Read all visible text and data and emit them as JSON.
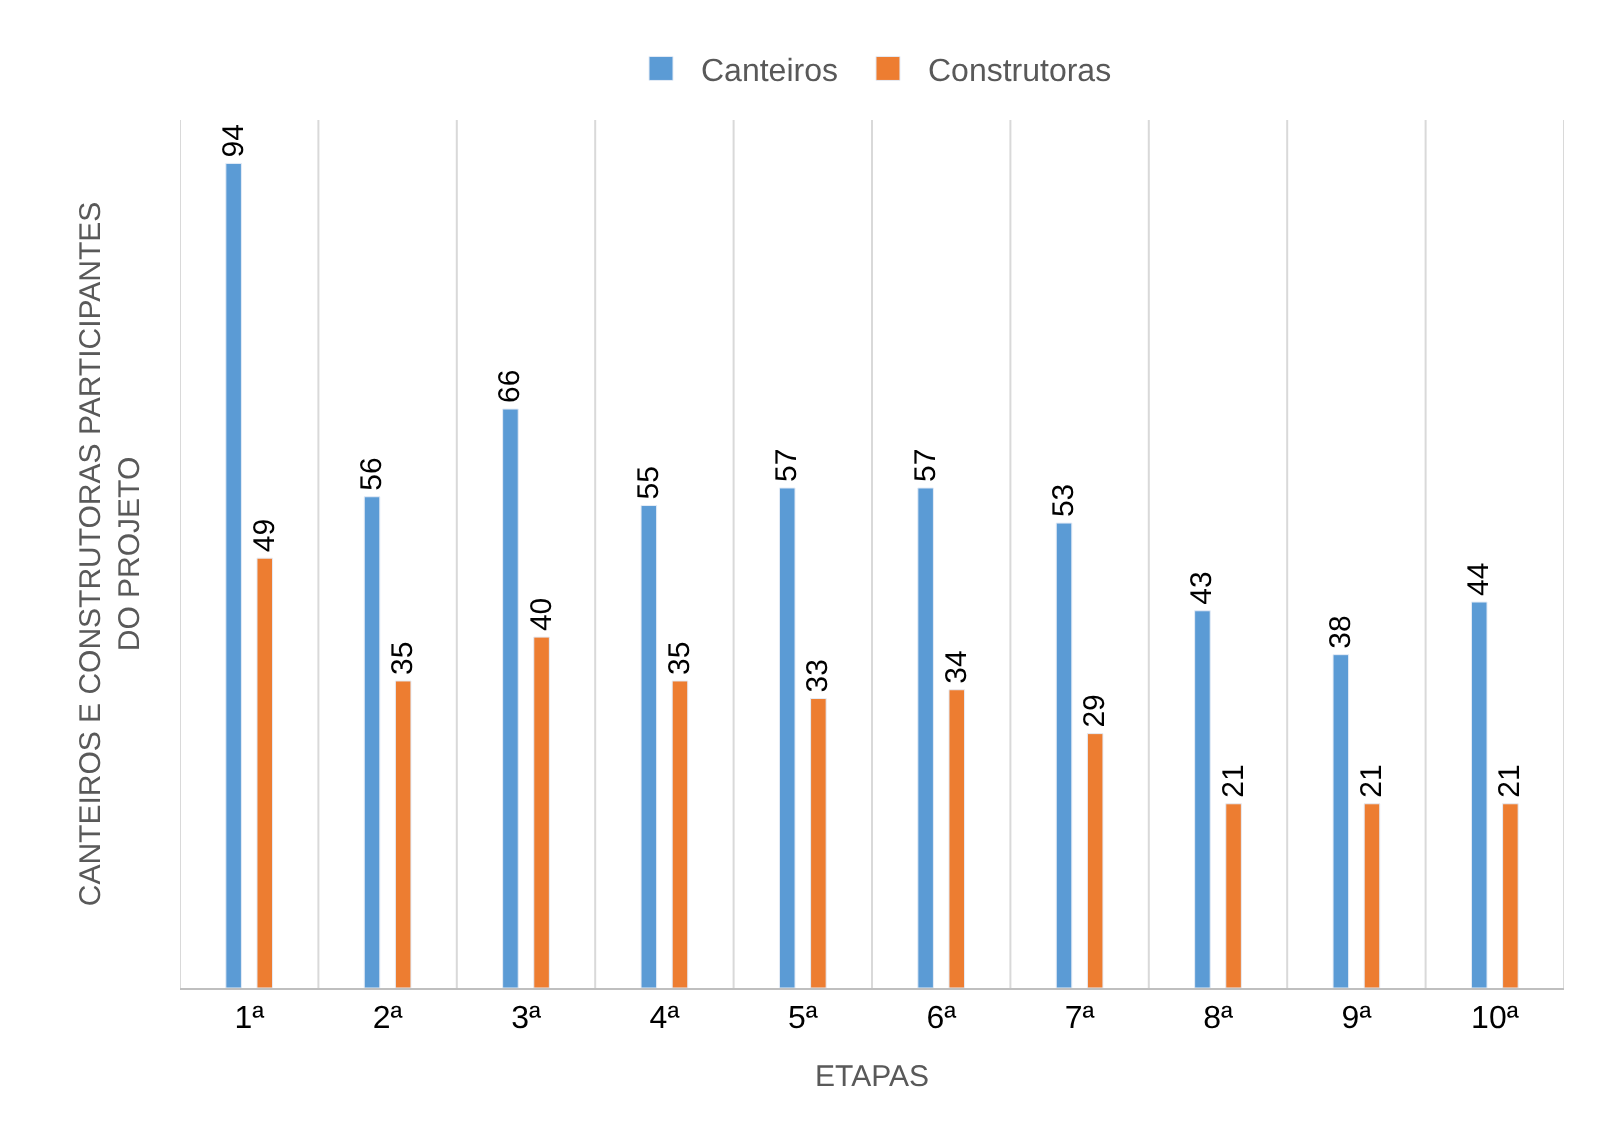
{
  "chart_data": {
    "type": "bar",
    "xlabel": "ETAPAS",
    "ylabel": "CANTEIROS E CONSTRUTORAS PARTICIPANTES DO PROJETO",
    "categories": [
      "1ª",
      "2ª",
      "3ª",
      "4ª",
      "5ª",
      "6ª",
      "7ª",
      "8ª",
      "9ª",
      "10ª"
    ],
    "series": [
      {
        "name": "Canteiros",
        "color": "#5b9bd5",
        "values": [
          94,
          56,
          66,
          55,
          57,
          57,
          53,
          43,
          38,
          44
        ]
      },
      {
        "name": "Construtoras",
        "color": "#ed7d31",
        "values": [
          49,
          35,
          40,
          35,
          33,
          34,
          29,
          21,
          21,
          21
        ]
      }
    ],
    "data_labels": true,
    "relative": false,
    "grid": "x",
    "legend": "top"
  }
}
